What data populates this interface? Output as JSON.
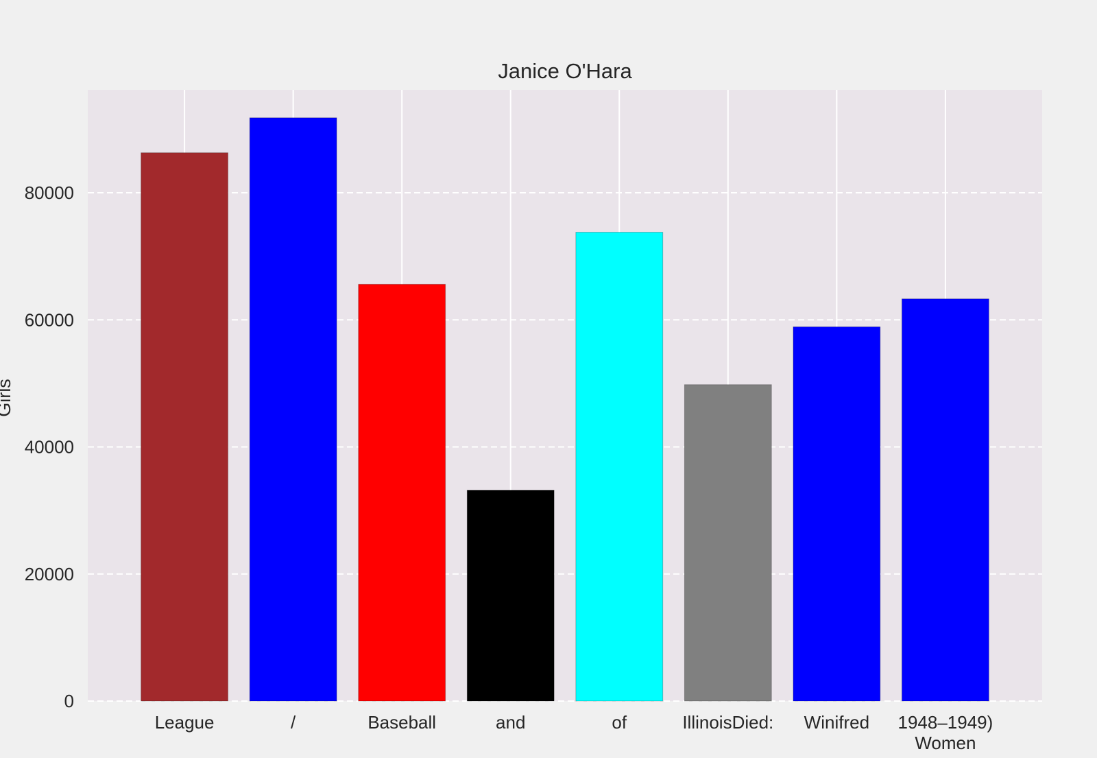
{
  "chart_data": {
    "type": "bar",
    "title": "Janice O'Hara",
    "xlabel": "",
    "ylabel": "Girls",
    "categories": [
      "League",
      "/",
      "Baseball",
      "and",
      "of",
      "IllinoisDied:",
      "Winifred",
      "1948–1949)\nWomen"
    ],
    "values": [
      86300,
      91800,
      65600,
      33200,
      73800,
      49800,
      58900,
      63300
    ],
    "colors": [
      "#a2292c",
      "#0000ff",
      "#ff0000",
      "#000000",
      "#00ffff",
      "#808080",
      "#0000ff",
      "#0000ff"
    ],
    "ylim": [
      0,
      96200
    ],
    "yticks": [
      0,
      20000,
      40000,
      60000,
      80000
    ],
    "grid": true,
    "plot_background": "#eae4ea",
    "figure_background": "#f0f0f0",
    "gridline_color": "#ffffff"
  }
}
